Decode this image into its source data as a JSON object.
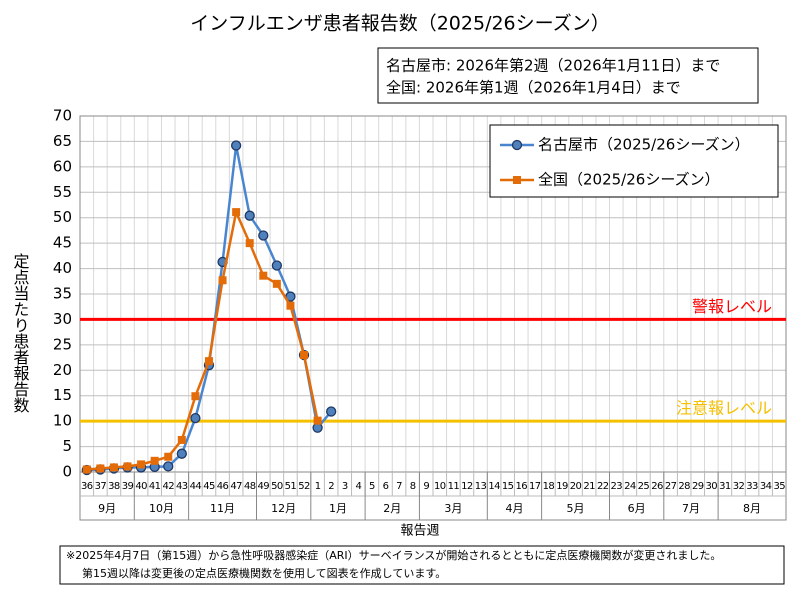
{
  "chart_data": {
    "type": "line",
    "title": "インフルエンザ患者報告数（2025/26シーズン）",
    "info": [
      "名古屋市: 2026年第2週（2026年1月11日）まで",
      "全国: 2026年第1週（2026年1月4日）まで"
    ],
    "xlabel": "報告週",
    "ylabel": "定点当たり患者報告数",
    "categories": [
      "36",
      "37",
      "38",
      "39",
      "40",
      "41",
      "42",
      "43",
      "44",
      "45",
      "46",
      "47",
      "48",
      "49",
      "50",
      "51",
      "52",
      "1",
      "2",
      "3",
      "4",
      "5",
      "6",
      "7",
      "8",
      "9",
      "10",
      "11",
      "12",
      "13",
      "14",
      "15",
      "16",
      "17",
      "18",
      "19",
      "20",
      "21",
      "22",
      "23",
      "24",
      "25",
      "26",
      "27",
      "28",
      "29",
      "30",
      "31",
      "32",
      "33",
      "34",
      "35"
    ],
    "months": [
      {
        "label": "9月",
        "first": 0
      },
      {
        "label": "10月",
        "first": 4
      },
      {
        "label": "11月",
        "first": 8
      },
      {
        "label": "12月",
        "first": 13
      },
      {
        "label": "1月",
        "first": 17
      },
      {
        "label": "2月",
        "first": 21
      },
      {
        "label": "3月",
        "first": 25
      },
      {
        "label": "4月",
        "first": 30
      },
      {
        "label": "5月",
        "first": 34
      },
      {
        "label": "6月",
        "first": 39
      },
      {
        "label": "7月",
        "first": 43
      },
      {
        "label": "8月",
        "first": 47
      }
    ],
    "series": [
      {
        "name": "名古屋市（2025/26シーズン）",
        "color": "#4a86d0",
        "marker": "circle",
        "values": [
          0.4,
          0.5,
          0.7,
          0.9,
          0.9,
          1.0,
          1.1,
          3.6,
          10.6,
          21.0,
          41.3,
          64.2,
          50.4,
          46.5,
          40.6,
          34.5,
          23.0,
          8.7,
          11.9,
          null,
          null,
          null,
          null,
          null,
          null,
          null,
          null,
          null,
          null,
          null,
          null,
          null,
          null,
          null,
          null,
          null,
          null,
          null,
          null,
          null,
          null,
          null,
          null,
          null,
          null,
          null,
          null,
          null,
          null,
          null,
          null,
          null
        ]
      },
      {
        "name": "全国（2025/26シーズン）",
        "color": "#e36c09",
        "marker": "square",
        "values": [
          0.5,
          0.7,
          0.9,
          1.1,
          1.5,
          2.2,
          3.0,
          6.3,
          14.9,
          21.8,
          37.7,
          51.1,
          45.0,
          38.6,
          37.0,
          32.7,
          23.0,
          10.1,
          null,
          null,
          null,
          null,
          null,
          null,
          null,
          null,
          null,
          null,
          null,
          null,
          null,
          null,
          null,
          null,
          null,
          null,
          null,
          null,
          null,
          null,
          null,
          null,
          null,
          null,
          null,
          null,
          null,
          null,
          null,
          null,
          null,
          null
        ]
      }
    ],
    "thresholds": [
      {
        "value": 30,
        "label": "警報レベル",
        "color": "#ff0000"
      },
      {
        "value": 10,
        "label": "注意報レベル",
        "color": "#f5c000"
      }
    ],
    "ylim": [
      0,
      70
    ],
    "yticks": [
      0,
      5,
      10,
      15,
      20,
      25,
      30,
      35,
      40,
      45,
      50,
      55,
      60,
      65,
      70
    ],
    "grid": true,
    "legend": "upper right",
    "note": [
      "※2025年4月7日（第15週）から急性呼吸器感染症（ARI）サーベイランスが開始されるとともに定点医療機関数が変更されました。",
      "第15週以降は変更後の定点医療機関数を使用して図表を作成しています。"
    ]
  }
}
